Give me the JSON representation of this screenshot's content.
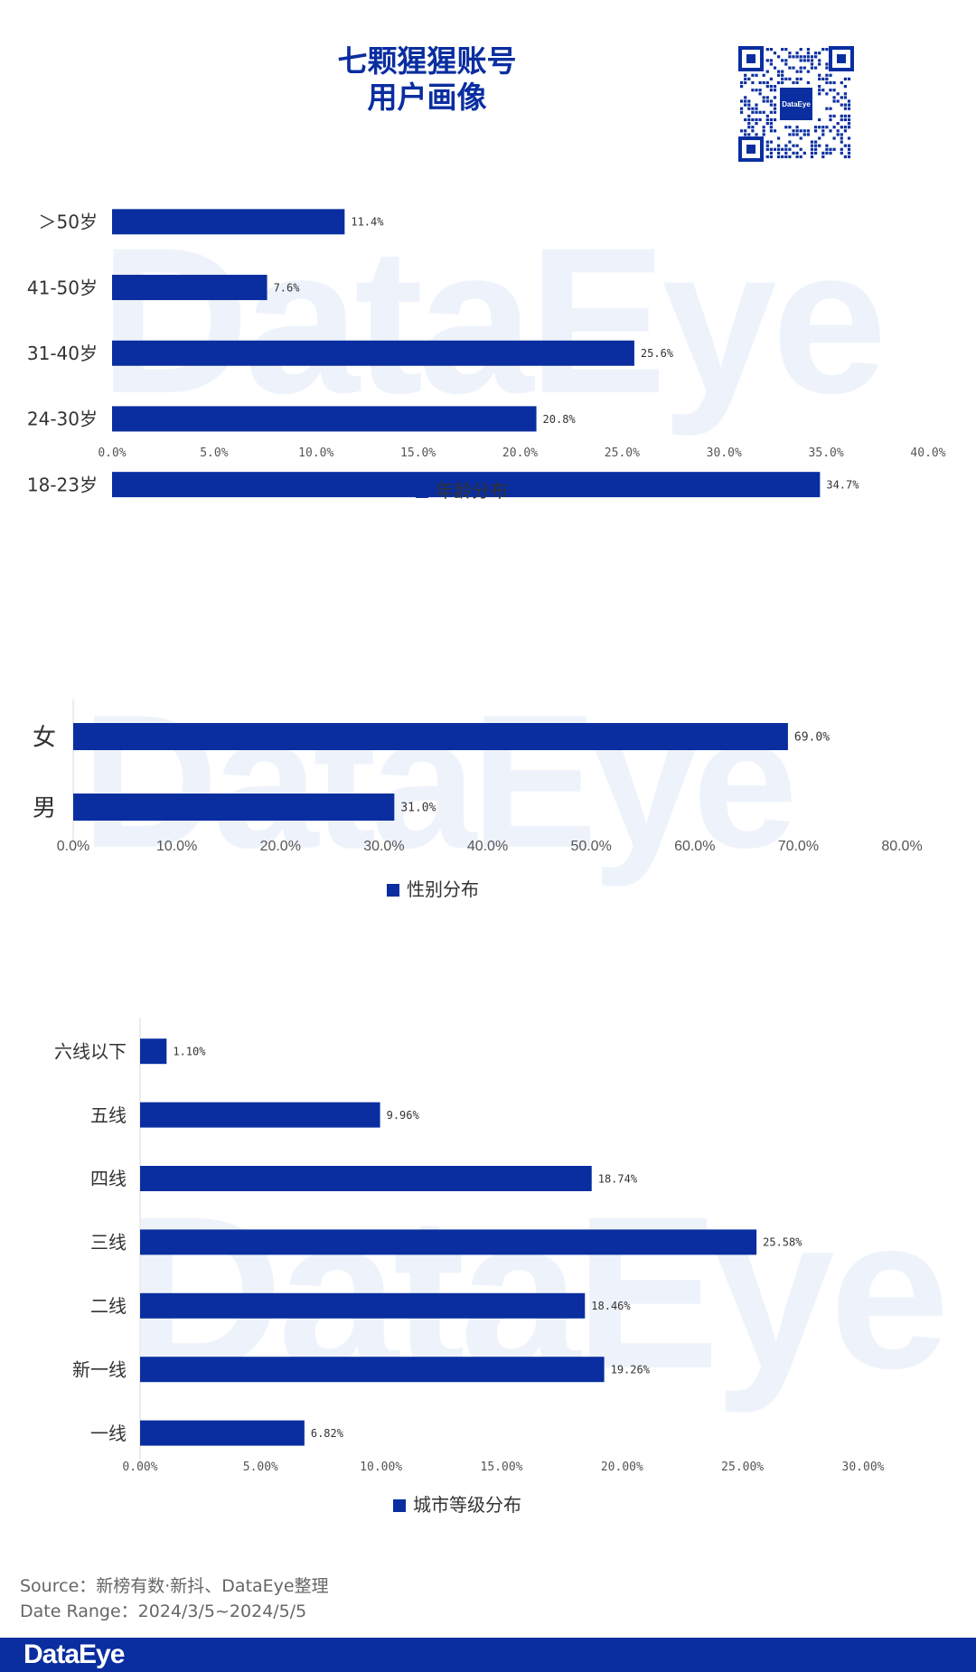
{
  "header": {
    "title_line1": "七颗猩猩账号",
    "title_line2": "用户画像",
    "qr_label": "DataEye"
  },
  "watermark_text": "DataEye",
  "colors": {
    "bar": "#0a2ea0",
    "title": "#0a2ea0",
    "footer": "#0a2ea0"
  },
  "chart_data": [
    {
      "type": "bar",
      "orientation": "horizontal",
      "categories": [
        "＞50岁",
        "41-50岁",
        "31-40岁",
        "24-30岁",
        "18-23岁"
      ],
      "values": [
        11.4,
        7.6,
        25.6,
        20.8,
        34.7
      ],
      "value_labels": [
        "11.4%",
        "7.6%",
        "25.6%",
        "20.8%",
        "34.7%"
      ],
      "xticks": [
        "0.0%",
        "5.0%",
        "10.0%",
        "15.0%",
        "20.0%",
        "25.0%",
        "30.0%",
        "35.0%",
        "40.0%"
      ],
      "xlim": [
        0,
        40
      ],
      "legend": "年龄分布",
      "legend_position": "bottom"
    },
    {
      "type": "bar",
      "orientation": "horizontal",
      "categories": [
        "女",
        "男"
      ],
      "values": [
        69.0,
        31.0
      ],
      "value_labels": [
        "69.0%",
        "31.0%"
      ],
      "xticks": [
        "0.0%",
        "10.0%",
        "20.0%",
        "30.0%",
        "40.0%",
        "50.0%",
        "60.0%",
        "70.0%",
        "80.0%"
      ],
      "xlim": [
        0,
        80
      ],
      "legend": "性别分布",
      "legend_position": "bottom"
    },
    {
      "type": "bar",
      "orientation": "horizontal",
      "categories": [
        "六线以下",
        "五线",
        "四线",
        "三线",
        "二线",
        "新一线",
        "一线"
      ],
      "values": [
        1.1,
        9.96,
        18.74,
        25.58,
        18.46,
        19.26,
        6.82
      ],
      "value_labels": [
        "1.10%",
        "9.96%",
        "18.74%",
        "25.58%",
        "18.46%",
        "19.26%",
        "6.82%"
      ],
      "xticks": [
        "0.00%",
        "5.00%",
        "10.00%",
        "15.00%",
        "20.00%",
        "25.00%",
        "30.00%"
      ],
      "xlim": [
        0,
        30
      ],
      "legend": "城市等级分布",
      "legend_position": "bottom"
    }
  ],
  "source": {
    "line1": "Source：新榜有数·新抖、DataEye整理",
    "line2": "Date Range：2024/3/5~2024/5/5"
  },
  "footer": {
    "logo": "DataEye"
  }
}
